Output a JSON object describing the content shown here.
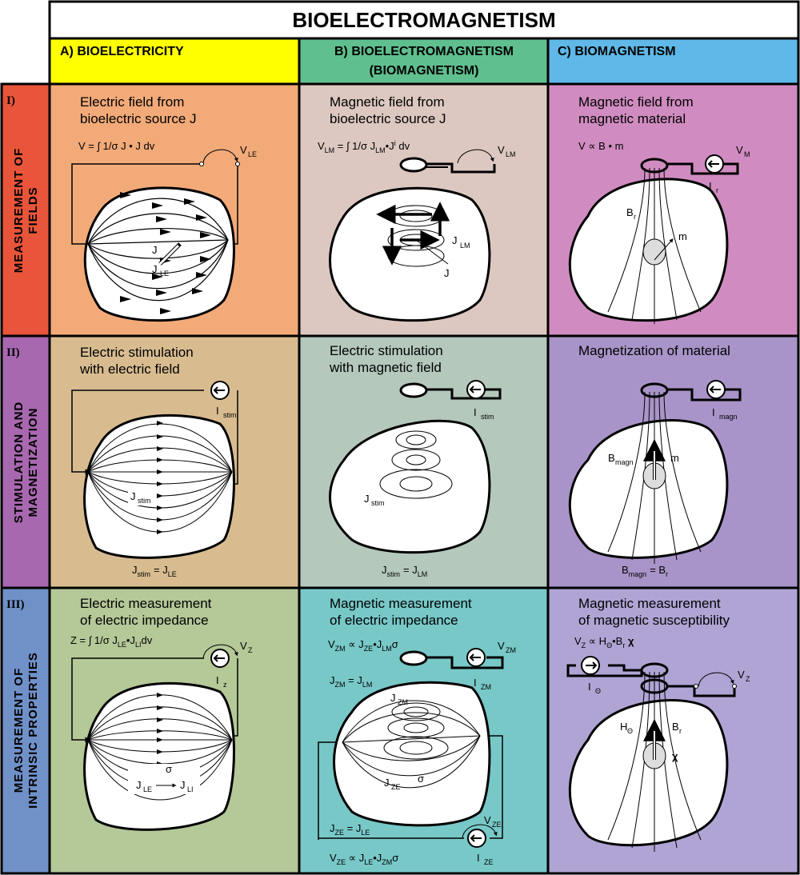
{
  "title": "BIOELECTROMAGNETISM",
  "columns": [
    {
      "line1": "A) BIOELECTRICITY",
      "line2": ""
    },
    {
      "line1": "B) BIOELECTROMAGNETISM",
      "line2": "(BIOMAGNETISM)"
    },
    {
      "line1": "C) BIOMAGNETISM",
      "line2": ""
    }
  ],
  "rows": [
    {
      "numeral": "I)",
      "side1": "MEASUREMENT OF",
      "side2": "FIELDS"
    },
    {
      "numeral": "II)",
      "side1": "STIMULATION AND",
      "side2": "MAGNETIZATION"
    },
    {
      "numeral": "III)",
      "side1": "MEASUREMENT OF",
      "side2": "INTRINSIC PROPERTIES"
    }
  ],
  "cells": {
    "r1a": {
      "cap1": "Electric field from",
      "cap2": "bioelectric source J",
      "eq": "V = ∫ 1/σ J • J dv",
      "v": "V",
      "v_sub": "LE",
      "j_src": "J",
      "j_field": "J",
      "j_field_sub": "LE"
    },
    "r1b": {
      "cap1": "Magnetic field from",
      "cap2": "bioelectric source J",
      "v": "V",
      "v_sub": "LM",
      "j_field": "J",
      "j_field_sub": "LM",
      "j_src": "J"
    },
    "r1c": {
      "cap1": "Magnetic field from",
      "cap2": "magnetic material",
      "eq": "V ∝ B • m",
      "v": "V",
      "v_sub": "M",
      "i": "I",
      "i_sub": "r",
      "b": "B",
      "b_sub": "r",
      "m": "m"
    },
    "r2a": {
      "cap1": "Electric stimulation",
      "cap2": "with electric field",
      "i": "I",
      "i_sub": "stim",
      "j": "J",
      "j_sub": "stim",
      "bottom": "J",
      "bottom_sub": "stim",
      "bottom_eq": "= J",
      "bottom_sub2": "LE"
    },
    "r2b": {
      "cap1": "Electric stimulation",
      "cap2": "with magnetic field",
      "i": "I",
      "i_sub": "stim",
      "j": "J",
      "j_sub": "stim",
      "bottom": "J",
      "bottom_sub": "stim",
      "bottom_eq": "= J",
      "bottom_sub2": "LM"
    },
    "r2c": {
      "cap1": "Magnetization of material",
      "i": "I",
      "i_sub": "magn",
      "b": "B",
      "b_sub": "magn",
      "m": "m",
      "bottom": "B",
      "bottom_sub": "magn",
      "bottom_eq": "= B",
      "bottom_sub2": "r"
    },
    "r3a": {
      "cap1": "Electric measurement",
      "cap2": "of electric impedance",
      "eq": "Z = ∫ 1/σ J • J dv",
      "v": "V",
      "v_sub": "Z",
      "i": "I",
      "i_sub": "z",
      "sigma": "σ",
      "j1": "J",
      "j1_sub": "LE",
      "j2": "J",
      "j2_sub": "LI"
    },
    "r3b": {
      "cap1": "Magnetic measurement",
      "cap2": "of electric impedance",
      "eq_top": "V ∝ J • J σ",
      "v": "V",
      "v_sub": "ZM",
      "eq_mid": "J = J",
      "i": "I",
      "i_sub": "ZM",
      "jzm": "J",
      "jzm_sub": "ZM",
      "jze": "J",
      "jze_sub": "ZE",
      "sigma": "σ",
      "eq_low": "J = J",
      "v2": "V",
      "v2_sub": "ZE",
      "i2": "I",
      "i2_sub": "ZE",
      "eq_bottom": "V ∝ J • J σ"
    },
    "r3c": {
      "cap1": "Magnetic measurement",
      "cap2": "of magnetic susceptibility",
      "eq": "V ∝ H • B χ",
      "v": "V",
      "v_sub": "Z",
      "i": "I",
      "i_sub": "Θ",
      "h": "H",
      "h_sub": "Θ",
      "b": "B",
      "b_sub": "r",
      "chi": "χ"
    }
  },
  "colors": {
    "col_a": "#ffff00",
    "col_b": "#5fbf8f",
    "col_c": "#5fb8e8",
    "row1_side": "#e8553a",
    "row2_side": "#a868b0",
    "row3_side": "#7090c8",
    "r1a": "#f2aa78",
    "r1b": "#dcc8c0",
    "r1c": "#d08cc0",
    "r2a": "#d8bc90",
    "r2b": "#b4c8bc",
    "r2c": "#a894c8",
    "r3a": "#b4c898",
    "r3b": "#78c8c8",
    "r3c": "#b0a4d4"
  }
}
